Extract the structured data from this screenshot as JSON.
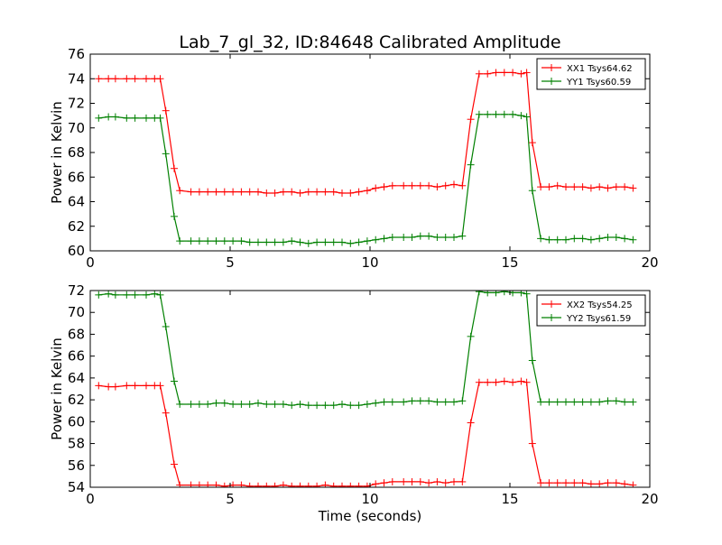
{
  "title": "Lab_7_gl_32, ID:84648 Calibrated Amplitude",
  "chart_data": [
    {
      "type": "line",
      "ylabel": "Power in Kelvin",
      "xlabel": "",
      "xlim": [
        0,
        20
      ],
      "ylim": [
        60,
        76
      ],
      "xticks": [
        0,
        5,
        10,
        15,
        20
      ],
      "yticks": [
        60,
        62,
        64,
        66,
        68,
        70,
        72,
        74,
        76
      ],
      "legend": "top-right",
      "grid": false,
      "x": [
        0.3,
        0.65,
        0.9,
        1.3,
        1.6,
        2.0,
        2.3,
        2.5,
        2.7,
        3.0,
        3.2,
        3.6,
        3.9,
        4.2,
        4.5,
        4.8,
        5.1,
        5.4,
        5.7,
        6.0,
        6.3,
        6.6,
        6.9,
        7.2,
        7.5,
        7.8,
        8.1,
        8.4,
        8.7,
        9.0,
        9.3,
        9.6,
        9.9,
        10.2,
        10.5,
        10.8,
        11.2,
        11.5,
        11.8,
        12.1,
        12.4,
        12.7,
        13.0,
        13.3,
        13.6,
        13.9,
        14.2,
        14.5,
        14.8,
        15.1,
        15.4,
        15.6,
        15.8,
        16.1,
        16.4,
        16.7,
        17.0,
        17.3,
        17.6,
        17.9,
        18.2,
        18.5,
        18.8,
        19.1,
        19.4
      ],
      "series": [
        {
          "name": "XX1 Tsys64.62",
          "color": "#ff0000",
          "values": [
            74.0,
            74.0,
            74.0,
            74.0,
            74.0,
            74.0,
            74.0,
            74.0,
            71.4,
            66.7,
            64.9,
            64.8,
            64.8,
            64.8,
            64.8,
            64.8,
            64.8,
            64.8,
            64.8,
            64.8,
            64.7,
            64.7,
            64.8,
            64.8,
            64.7,
            64.8,
            64.8,
            64.8,
            64.8,
            64.7,
            64.7,
            64.8,
            64.9,
            65.1,
            65.2,
            65.3,
            65.3,
            65.3,
            65.3,
            65.3,
            65.2,
            65.3,
            65.4,
            65.3,
            70.7,
            74.4,
            74.4,
            74.5,
            74.5,
            74.5,
            74.4,
            74.5,
            68.8,
            65.2,
            65.2,
            65.3,
            65.2,
            65.2,
            65.2,
            65.1,
            65.2,
            65.1,
            65.2,
            65.2,
            65.1
          ]
        },
        {
          "name": "YY1 Tsys60.59",
          "color": "#008000",
          "values": [
            70.8,
            70.9,
            70.9,
            70.8,
            70.8,
            70.8,
            70.8,
            70.8,
            67.9,
            62.8,
            60.8,
            60.8,
            60.8,
            60.8,
            60.8,
            60.8,
            60.8,
            60.8,
            60.7,
            60.7,
            60.7,
            60.7,
            60.7,
            60.8,
            60.7,
            60.6,
            60.7,
            60.7,
            60.7,
            60.7,
            60.6,
            60.7,
            60.8,
            60.9,
            61.0,
            61.1,
            61.1,
            61.1,
            61.2,
            61.2,
            61.1,
            61.1,
            61.1,
            61.2,
            67.0,
            71.1,
            71.1,
            71.1,
            71.1,
            71.1,
            71.0,
            70.9,
            64.9,
            61.0,
            60.9,
            60.9,
            60.9,
            61.0,
            61.0,
            60.9,
            61.0,
            61.1,
            61.1,
            61.0,
            60.9
          ]
        }
      ]
    },
    {
      "type": "line",
      "ylabel": "Power in Kelvin",
      "xlabel": "Time (seconds)",
      "xlim": [
        0,
        20
      ],
      "ylim": [
        54,
        72
      ],
      "xticks": [
        0,
        5,
        10,
        15,
        20
      ],
      "yticks": [
        54,
        56,
        58,
        60,
        62,
        64,
        66,
        68,
        70,
        72
      ],
      "legend": "top-right",
      "grid": false,
      "x": [
        0.3,
        0.65,
        0.9,
        1.3,
        1.6,
        2.0,
        2.3,
        2.5,
        2.7,
        3.0,
        3.2,
        3.6,
        3.9,
        4.2,
        4.5,
        4.8,
        5.1,
        5.4,
        5.7,
        6.0,
        6.3,
        6.6,
        6.9,
        7.2,
        7.5,
        7.8,
        8.1,
        8.4,
        8.7,
        9.0,
        9.3,
        9.6,
        9.9,
        10.2,
        10.5,
        10.8,
        11.2,
        11.5,
        11.8,
        12.1,
        12.4,
        12.7,
        13.0,
        13.3,
        13.6,
        13.9,
        14.2,
        14.5,
        14.8,
        15.1,
        15.4,
        15.6,
        15.8,
        16.1,
        16.4,
        16.7,
        17.0,
        17.3,
        17.6,
        17.9,
        18.2,
        18.5,
        18.8,
        19.1,
        19.4
      ],
      "series": [
        {
          "name": "XX2 Tsys54.25",
          "color": "#ff0000",
          "values": [
            63.3,
            63.2,
            63.2,
            63.3,
            63.3,
            63.3,
            63.3,
            63.3,
            60.8,
            56.1,
            54.2,
            54.2,
            54.2,
            54.2,
            54.2,
            54.1,
            54.2,
            54.2,
            54.1,
            54.1,
            54.1,
            54.1,
            54.2,
            54.1,
            54.1,
            54.1,
            54.1,
            54.2,
            54.1,
            54.1,
            54.1,
            54.1,
            54.1,
            54.3,
            54.4,
            54.5,
            54.5,
            54.5,
            54.5,
            54.4,
            54.5,
            54.4,
            54.5,
            54.5,
            59.9,
            63.6,
            63.6,
            63.6,
            63.7,
            63.6,
            63.7,
            63.6,
            58.0,
            54.4,
            54.4,
            54.4,
            54.4,
            54.4,
            54.4,
            54.3,
            54.3,
            54.4,
            54.4,
            54.3,
            54.2
          ]
        },
        {
          "name": "YY2 Tsys61.59",
          "color": "#008000",
          "values": [
            71.6,
            71.7,
            71.6,
            71.6,
            71.6,
            71.6,
            71.7,
            71.6,
            68.7,
            63.7,
            61.6,
            61.6,
            61.6,
            61.6,
            61.7,
            61.7,
            61.6,
            61.6,
            61.6,
            61.7,
            61.6,
            61.6,
            61.6,
            61.5,
            61.6,
            61.5,
            61.5,
            61.5,
            61.5,
            61.6,
            61.5,
            61.5,
            61.6,
            61.7,
            61.8,
            61.8,
            61.8,
            61.9,
            61.9,
            61.9,
            61.8,
            61.8,
            61.8,
            61.9,
            67.8,
            71.9,
            71.8,
            71.8,
            71.9,
            71.8,
            71.8,
            71.7,
            65.6,
            61.8,
            61.8,
            61.8,
            61.8,
            61.8,
            61.8,
            61.8,
            61.8,
            61.9,
            61.9,
            61.8,
            61.8
          ]
        }
      ]
    }
  ]
}
